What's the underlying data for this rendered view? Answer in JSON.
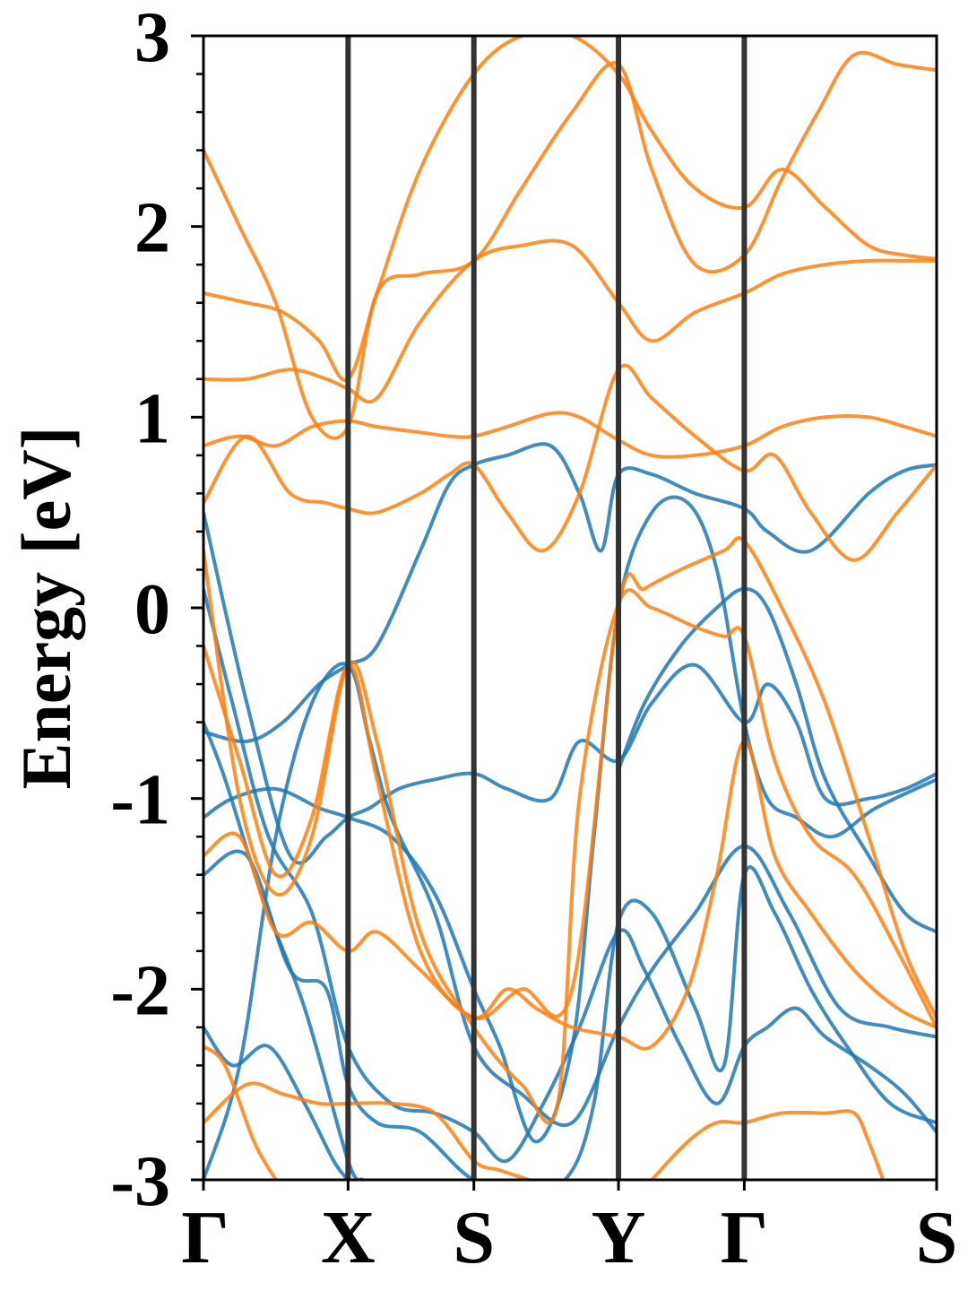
{
  "chart_data": {
    "type": "line",
    "title": "",
    "xlabel": "",
    "ylabel": "Energy [eV]",
    "ylim": [
      -3,
      3
    ],
    "y_ticks": [
      -3,
      -2,
      -1,
      0,
      1,
      2,
      3
    ],
    "y_tick_labels": [
      "-3",
      "-2",
      "-1",
      "0",
      "1",
      "2",
      "3"
    ],
    "y_minor_step": 0.2,
    "grid": false,
    "legend": "none",
    "x_kpoints": [
      {
        "label": "Γ",
        "pos": 0.0
      },
      {
        "label": "X",
        "pos": 1.0
      },
      {
        "label": "S",
        "pos": 1.87
      },
      {
        "label": "Y",
        "pos": 2.87
      },
      {
        "label": "Γ",
        "pos": 3.74
      },
      {
        "label": "S",
        "pos": 5.07
      }
    ],
    "series_colors": {
      "spin_up": "#1f77b4",
      "spin_down": "#ff7f0e"
    },
    "series": [
      {
        "color": "#1f77b4",
        "x": [
          0,
          0.25,
          0.5,
          0.75,
          1.0,
          1.15,
          1.3,
          1.6,
          1.87,
          2.2,
          2.55,
          2.87,
          3.1,
          3.4,
          3.74,
          4.05,
          4.4,
          4.75,
          5.07
        ],
        "y": [
          -3.0,
          -2.4,
          -1.2,
          -0.5,
          -0.3,
          -0.7,
          -1.1,
          -1.6,
          -2.3,
          -2.55,
          -2.7,
          -2.2,
          -1.9,
          -1.6,
          -1.25,
          -1.6,
          -2.1,
          -2.2,
          -2.25
        ]
      },
      {
        "color": "#1f77b4",
        "x": [
          0,
          0.3,
          0.6,
          0.85,
          1.0,
          1.15,
          1.35,
          1.6,
          1.87,
          2.1,
          2.4,
          2.6,
          2.87,
          3.1,
          3.4,
          3.74,
          3.9,
          4.1,
          4.3,
          4.6,
          4.85,
          5.07
        ],
        "y": [
          0.5,
          -0.5,
          -1.3,
          -1.2,
          -1.1,
          -1.05,
          -0.95,
          -0.9,
          -0.87,
          -0.95,
          -1.0,
          -0.7,
          -0.8,
          -0.5,
          -0.3,
          -0.6,
          -0.4,
          -0.6,
          -1.0,
          -1.0,
          -0.95,
          -0.87
        ]
      },
      {
        "color": "#1f77b4",
        "x": [
          0,
          0.3,
          0.55,
          0.8,
          1.0,
          1.2,
          1.5,
          1.7,
          1.87,
          2.1,
          2.4,
          2.6,
          2.75,
          2.87,
          3.1,
          3.4,
          3.74,
          3.9,
          4.2,
          4.6,
          4.85,
          5.07
        ],
        "y": [
          -0.65,
          -0.7,
          -0.6,
          -0.4,
          -0.3,
          -0.2,
          0.3,
          0.65,
          0.75,
          0.8,
          0.85,
          0.6,
          0.3,
          0.7,
          0.7,
          0.6,
          0.52,
          0.4,
          0.3,
          0.6,
          0.72,
          0.75
        ]
      },
      {
        "color": "#1f77b4",
        "x": [
          0,
          0.2,
          0.45,
          0.75,
          1.0,
          1.3,
          1.6,
          1.87,
          2.1,
          2.35,
          2.6,
          2.87,
          3.05,
          3.3,
          3.55,
          3.74,
          3.9,
          4.1,
          4.3,
          4.6,
          4.85,
          5.07
        ],
        "y": [
          0.1,
          -0.5,
          -1.2,
          -1.6,
          -2.3,
          -2.6,
          -2.65,
          -2.75,
          -2.9,
          -2.6,
          -2.2,
          -1.7,
          -1.9,
          -2.3,
          -2.6,
          -2.3,
          -2.2,
          -2.1,
          -2.25,
          -2.4,
          -2.55,
          -2.75
        ]
      },
      {
        "color": "#1f77b4",
        "x": [
          0,
          0.2,
          0.5,
          0.8,
          1.0,
          1.3,
          1.6,
          1.87,
          2.05,
          2.3,
          2.55,
          2.7,
          2.87,
          3.1,
          3.35,
          3.55,
          3.74,
          3.9,
          4.1,
          4.35,
          4.65,
          5.07
        ],
        "y": [
          -1.1,
          -1.0,
          -0.95,
          -1.05,
          -1.1,
          -1.2,
          -1.5,
          -2.0,
          -2.3,
          -2.8,
          -2.3,
          -1.2,
          0.0,
          0.5,
          0.55,
          0.2,
          -0.6,
          -1.0,
          -1.1,
          -1.2,
          -1.05,
          -0.9
        ]
      },
      {
        "color": "#1f77b4",
        "x": [
          0,
          0.3,
          0.6,
          0.85,
          1.0,
          1.2,
          1.5,
          1.87,
          2.2,
          2.5,
          2.7,
          2.87,
          3.1,
          3.4,
          3.6,
          3.74,
          3.95,
          4.2,
          4.45,
          4.75,
          5.07
        ],
        "y": [
          -1.4,
          -1.3,
          -1.9,
          -2.0,
          -2.5,
          -2.7,
          -2.75,
          -3.0,
          -3.0,
          -3.0,
          -2.6,
          -1.65,
          -1.6,
          -2.1,
          -2.4,
          -1.4,
          -1.6,
          -2.0,
          -2.3,
          -2.6,
          -2.7
        ]
      },
      {
        "color": "#1f77b4",
        "x": [
          0,
          0.2,
          0.45,
          0.7,
          0.9,
          1.0
        ],
        "y": [
          -2.2,
          -2.4,
          -2.3,
          -2.6,
          -2.9,
          -3.0
        ]
      },
      {
        "color": "#1f77b4",
        "x": [
          2.87,
          3.05,
          3.3,
          3.55,
          3.74,
          3.9,
          4.1,
          4.3,
          4.6,
          4.85,
          5.07
        ],
        "y": [
          -0.85,
          -0.5,
          -0.2,
          0.0,
          0.1,
          0.0,
          -0.4,
          -0.9,
          -1.3,
          -1.6,
          -1.7
        ]
      },
      {
        "color": "#1f77b4",
        "x": [
          0,
          0.15,
          0.4,
          0.7,
          1.0,
          1.1
        ],
        "y": [
          -0.6,
          -0.9,
          -1.5,
          -2.1,
          -2.9,
          -3.0
        ]
      },
      {
        "color": "#ff7f0e",
        "x": [
          0,
          0.25,
          0.5,
          0.75,
          1.0,
          1.2,
          1.5,
          1.7,
          1.87,
          2.1,
          2.4,
          2.6,
          2.87,
          3.1,
          3.4,
          3.74,
          4.0,
          4.3,
          4.6,
          4.85,
          5.07
        ],
        "y": [
          0.85,
          0.9,
          0.85,
          0.95,
          0.98,
          0.95,
          0.92,
          0.9,
          0.9,
          0.95,
          1.02,
          1.0,
          0.88,
          0.8,
          0.8,
          0.85,
          0.95,
          1.0,
          1.0,
          0.95,
          0.9
        ]
      },
      {
        "color": "#ff7f0e",
        "x": [
          0,
          0.3,
          0.6,
          0.85,
          1.0,
          1.2,
          1.5,
          1.7,
          1.87,
          2.1,
          2.35,
          2.6,
          2.87,
          3.1,
          3.4,
          3.74,
          3.95,
          4.2,
          4.5,
          4.8,
          5.07
        ],
        "y": [
          0.55,
          0.9,
          0.6,
          0.55,
          0.52,
          0.5,
          0.6,
          0.7,
          0.75,
          0.5,
          0.3,
          0.6,
          1.25,
          1.1,
          0.9,
          0.72,
          0.8,
          0.5,
          0.25,
          0.5,
          0.75
        ]
      },
      {
        "color": "#ff7f0e",
        "x": [
          0,
          0.3,
          0.6,
          0.85,
          1.0,
          1.2,
          1.5,
          1.87,
          2.2,
          2.55,
          2.87,
          3.1,
          3.4,
          3.74,
          4.0,
          4.3,
          4.6,
          4.85,
          5.07
        ],
        "y": [
          1.2,
          1.2,
          1.25,
          1.2,
          1.15,
          1.1,
          1.5,
          1.82,
          1.9,
          1.9,
          1.6,
          1.4,
          1.55,
          1.65,
          1.75,
          1.8,
          1.82,
          1.82,
          1.82
        ]
      },
      {
        "color": "#ff7f0e",
        "x": [
          0,
          0.3,
          0.55,
          0.8,
          1.0,
          1.2,
          1.5,
          1.87,
          2.2,
          2.55,
          2.87,
          3.1,
          3.4,
          3.74,
          4.0,
          4.3,
          4.6,
          4.85,
          5.07
        ],
        "y": [
          1.65,
          1.6,
          1.55,
          1.4,
          1.2,
          1.65,
          2.3,
          2.8,
          3.0,
          3.0,
          2.8,
          2.5,
          2.2,
          2.1,
          2.3,
          2.1,
          1.9,
          1.85,
          1.83
        ]
      },
      {
        "color": "#ff7f0e",
        "x": [
          0,
          0.25,
          0.5,
          0.75,
          1.0,
          1.2,
          1.5,
          1.87,
          2.2,
          2.55,
          2.87,
          3.1,
          3.4,
          3.74,
          4.0,
          4.25,
          4.5,
          4.8,
          5.07
        ],
        "y": [
          2.4,
          2.0,
          1.6,
          1.0,
          0.95,
          1.65,
          1.75,
          1.82,
          2.2,
          2.6,
          2.85,
          2.3,
          1.8,
          1.85,
          2.25,
          2.6,
          2.9,
          2.85,
          2.82
        ]
      },
      {
        "color": "#ff7f0e",
        "x": [
          0,
          0.25,
          0.5,
          0.75,
          1.0,
          1.2,
          1.5,
          1.87,
          2.2,
          2.55,
          2.87,
          3.05,
          3.3,
          3.6,
          3.74,
          4.0,
          4.3,
          4.6,
          4.85,
          5.07
        ],
        "y": [
          -0.2,
          -0.8,
          -1.4,
          -1.1,
          -0.3,
          -0.9,
          -1.8,
          -2.15,
          -2.0,
          -2.0,
          -0.0,
          0.1,
          0.2,
          0.3,
          0.35,
          0.0,
          -0.5,
          -1.2,
          -1.8,
          -2.15
        ]
      },
      {
        "color": "#ff7f0e",
        "x": [
          0,
          0.25,
          0.5,
          0.75,
          1.0,
          1.2,
          1.5,
          1.87,
          2.2,
          2.45,
          2.6,
          2.87,
          3.1,
          3.4,
          3.6,
          3.74,
          3.95,
          4.2,
          4.5,
          4.8,
          5.07
        ],
        "y": [
          0.3,
          -1.0,
          -1.5,
          -1.2,
          -0.3,
          -0.7,
          -1.7,
          -2.2,
          -2.5,
          -2.6,
          -1.0,
          0.02,
          0.0,
          -0.1,
          -0.15,
          -0.15,
          -0.8,
          -1.2,
          -1.4,
          -1.8,
          -2.2
        ]
      },
      {
        "color": "#ff7f0e",
        "x": [
          0,
          0.25,
          0.5,
          0.75,
          1.0,
          1.2,
          1.5,
          1.87,
          2.1,
          2.3,
          2.55,
          2.87,
          3.1,
          3.35,
          3.55,
          3.74,
          3.95,
          4.2,
          4.5,
          4.8,
          5.07
        ],
        "y": [
          -1.3,
          -1.2,
          -1.7,
          -1.65,
          -1.8,
          -1.7,
          -1.9,
          -2.15,
          -2.0,
          -2.1,
          -2.2,
          -2.25,
          -2.3,
          -2.0,
          -1.4,
          -0.7,
          -1.3,
          -1.6,
          -1.9,
          -2.1,
          -2.2
        ]
      },
      {
        "color": "#ff7f0e",
        "x": [
          0,
          0.3,
          0.55,
          0.8,
          1.0,
          1.3,
          1.6,
          1.87,
          2.05,
          2.25
        ],
        "y": [
          -2.7,
          -2.5,
          -2.55,
          -2.6,
          -2.6,
          -2.6,
          -2.65,
          -2.9,
          -2.95,
          -3.0
        ]
      },
      {
        "color": "#ff7f0e",
        "x": [
          3.1,
          3.35,
          3.55,
          3.74,
          4.0,
          4.3,
          4.5,
          4.6,
          4.7
        ],
        "y": [
          -3.0,
          -2.8,
          -2.7,
          -2.7,
          -2.65,
          -2.65,
          -2.65,
          -2.8,
          -3.0
        ]
      },
      {
        "color": "#ff7f0e",
        "x": [
          0,
          0.15,
          0.35,
          0.5
        ],
        "y": [
          -2.3,
          -2.4,
          -2.8,
          -3.0
        ]
      }
    ]
  }
}
